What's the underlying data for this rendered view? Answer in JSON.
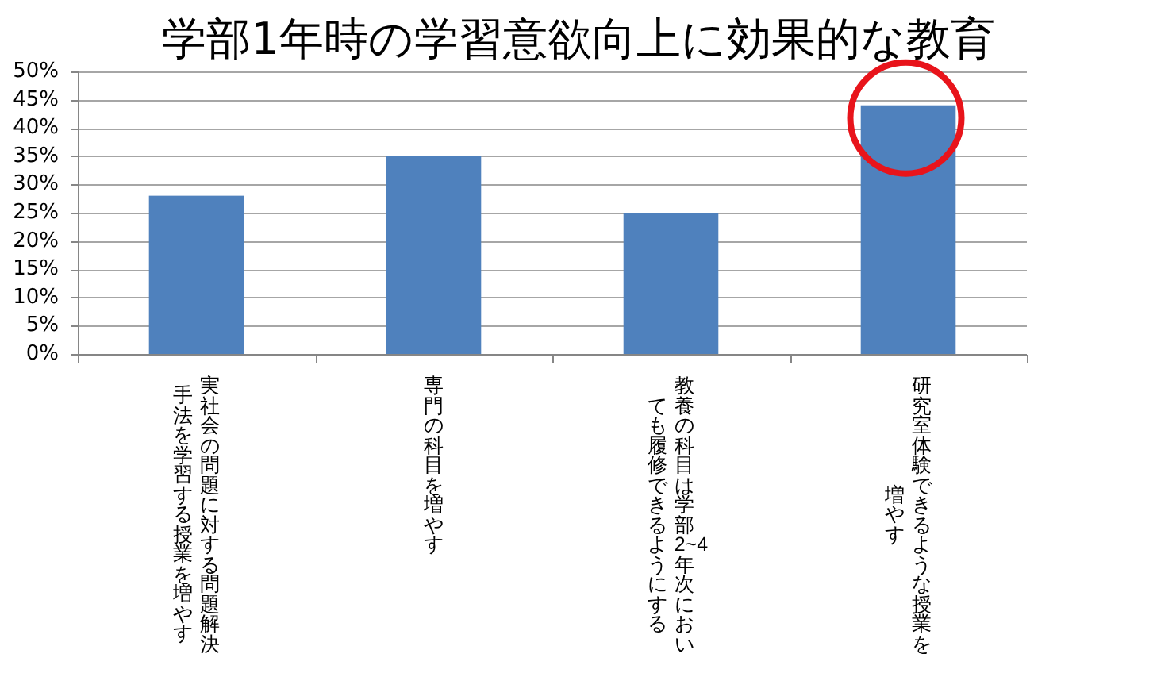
{
  "chart_data": {
    "type": "bar",
    "title": "学部1年時の学習意欲向上に効果的な教育",
    "categories": [
      "実社会の問題に対する問題解決手法を学習する授業を増やす",
      "専門の科目を増やす",
      "教養の科目は学部2~4年次においても履修できるようにする",
      "研究室体験できるような授業を増やす"
    ],
    "values": [
      28,
      35,
      25,
      44
    ],
    "color": "#4f81bd",
    "ylim": [
      0,
      50
    ],
    "yticks": [
      {
        "value": 0,
        "label": "0%"
      },
      {
        "value": 5,
        "label": "5%"
      },
      {
        "value": 10,
        "label": "10%"
      },
      {
        "value": 15,
        "label": "15%"
      },
      {
        "value": 20,
        "label": "20%"
      },
      {
        "value": 25,
        "label": "25%"
      },
      {
        "value": 30,
        "label": "30%"
      },
      {
        "value": 35,
        "label": "35%"
      },
      {
        "value": 40,
        "label": "40%"
      },
      {
        "value": 45,
        "label": "45%"
      },
      {
        "value": 50,
        "label": "50%"
      }
    ],
    "grid": "y"
  }
}
